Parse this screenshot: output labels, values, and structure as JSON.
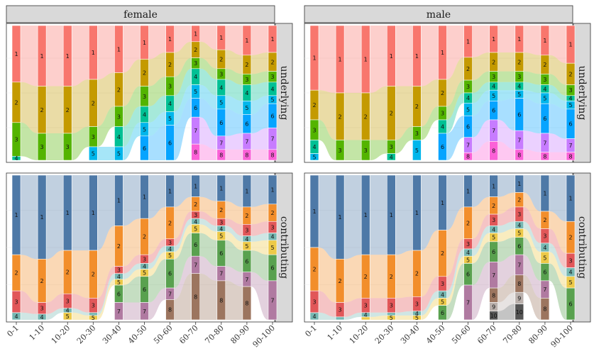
{
  "chart_data": {
    "type": "alluvial",
    "facets": {
      "columns": [
        "female",
        "male"
      ],
      "rows": [
        "underlying",
        "contributing"
      ]
    },
    "x_categories": [
      "0-1",
      "1-10",
      "10-20",
      "20-30",
      "30-40",
      "40-50",
      "50-60",
      "60-70",
      "70-80",
      "80-90",
      "90-100"
    ],
    "palettes": {
      "underlying": {
        "1": "#F8766D",
        "2": "#C49A00",
        "3": "#53B400",
        "4": "#00C094",
        "5": "#00B6EB",
        "6": "#06A4FF",
        "7": "#C77CFF",
        "8": "#FB61D7"
      },
      "contributing": {
        "1": "#4E79A7",
        "2": "#F28E2B",
        "3": "#E15759",
        "4": "#76B7B2",
        "5": "#EDC948",
        "6": "#59A14F",
        "7": "#B07AA1",
        "8": "#9C755F",
        "9": "#BAB0AC",
        "10": "#555555"
      }
    },
    "panels": [
      {
        "col": "female",
        "row": "underlying",
        "stacks": [
          [
            [
              "1",
              42
            ],
            [
              "2",
              30
            ],
            [
              "3",
              25
            ],
            [
              "4",
              3
            ]
          ],
          [
            [
              "1",
              45
            ],
            [
              "2",
              35
            ],
            [
              "3",
              20
            ]
          ],
          [
            [
              "1",
              45
            ],
            [
              "2",
              35
            ],
            [
              "3",
              20
            ]
          ],
          [
            [
              "1",
              40
            ],
            [
              "2",
              35
            ],
            [
              "3",
              15
            ],
            [
              "5",
              10
            ]
          ],
          [
            [
              "1",
              35
            ],
            [
              "2",
              25
            ],
            [
              "3",
              15
            ],
            [
              "4",
              15
            ],
            [
              "5",
              10
            ]
          ],
          [
            [
              "1",
              25
            ],
            [
              "2",
              20
            ],
            [
              "3",
              15
            ],
            [
              "4",
              12
            ],
            [
              "5",
              10
            ],
            [
              "6",
              18
            ]
          ],
          [
            [
              "1",
              20
            ],
            [
              "2",
              18
            ],
            [
              "3",
              14
            ],
            [
              "4",
              12
            ],
            [
              "5",
              10
            ],
            [
              "6",
              26
            ]
          ],
          [
            [
              "1",
              12
            ],
            [
              "2",
              12
            ],
            [
              "3",
              8
            ],
            [
              "4",
              12
            ],
            [
              "5",
              10
            ],
            [
              "6",
              14
            ],
            [
              "7",
              20
            ],
            [
              "8",
              12
            ]
          ],
          [
            [
              "1",
              18
            ],
            [
              "2",
              14
            ],
            [
              "3",
              8
            ],
            [
              "4",
              12
            ],
            [
              "5",
              10
            ],
            [
              "6",
              20
            ],
            [
              "7",
              10
            ],
            [
              "8",
              8
            ]
          ],
          [
            [
              "1",
              22
            ],
            [
              "2",
              14
            ],
            [
              "3",
              8
            ],
            [
              "4",
              12
            ],
            [
              "5",
              10
            ],
            [
              "6",
              14
            ],
            [
              "7",
              12
            ],
            [
              "8",
              8
            ]
          ],
          [
            [
              "1",
              20
            ],
            [
              "2",
              14
            ],
            [
              "3",
              8
            ],
            [
              "4",
              10
            ],
            [
              "5",
              6
            ],
            [
              "6",
              18
            ],
            [
              "7",
              16
            ],
            [
              "8",
              8
            ]
          ]
        ]
      },
      {
        "col": "male",
        "row": "underlying",
        "stacks": [
          [
            [
              "1",
              48
            ],
            [
              "2",
              22
            ],
            [
              "3",
              15
            ],
            [
              "4",
              10
            ],
            [
              "5",
              5
            ]
          ],
          [
            [
              "1",
              50
            ],
            [
              "2",
              35
            ],
            [
              "3",
              15
            ]
          ],
          [
            [
              "1",
              50
            ],
            [
              "2",
              35
            ],
            [
              "3",
              15
            ]
          ],
          [
            [
              "1",
              45
            ],
            [
              "2",
              40
            ],
            [
              "3",
              10
            ],
            [
              "4",
              5
            ]
          ],
          [
            [
              "1",
              45
            ],
            [
              "2",
              30
            ],
            [
              "3",
              10
            ],
            [
              "5",
              15
            ]
          ],
          [
            [
              "1",
              40
            ],
            [
              "2",
              20
            ],
            [
              "3",
              10
            ],
            [
              "4",
              10
            ],
            [
              "6",
              20
            ]
          ],
          [
            [
              "1",
              25
            ],
            [
              "2",
              18
            ],
            [
              "3",
              10
            ],
            [
              "4",
              8
            ],
            [
              "5",
              10
            ],
            [
              "6",
              17
            ],
            [
              "7",
              12
            ],
            [
              "8",
              6
            ]
          ],
          [
            [
              "1",
              20
            ],
            [
              "2",
              14
            ],
            [
              "3",
              8
            ],
            [
              "4",
              6
            ],
            [
              "5",
              8
            ],
            [
              "6",
              14
            ],
            [
              "7",
              16
            ],
            [
              "8",
              14
            ]
          ],
          [
            [
              "1",
              20
            ],
            [
              "2",
              14
            ],
            [
              "3",
              8
            ],
            [
              "4",
              6
            ],
            [
              "5",
              6
            ],
            [
              "6",
              24
            ],
            [
              "7",
              14
            ],
            [
              "8",
              8
            ]
          ],
          [
            [
              "1",
              22
            ],
            [
              "2",
              14
            ],
            [
              "3",
              8
            ],
            [
              "4",
              6
            ],
            [
              "5",
              8
            ],
            [
              "6",
              22
            ],
            [
              "7",
              14
            ],
            [
              "8",
              6
            ]
          ],
          [
            [
              "1",
              28
            ],
            [
              "2",
              16
            ],
            [
              "3",
              8
            ],
            [
              "4",
              4
            ],
            [
              "5",
              6
            ],
            [
              "6",
              22
            ],
            [
              "7",
              10
            ],
            [
              "8",
              6
            ]
          ]
        ]
      },
      {
        "col": "female",
        "row": "contributing",
        "stacks": [
          [
            [
              "1",
              55
            ],
            [
              "2",
              25
            ],
            [
              "3",
              15
            ],
            [
              "4",
              5
            ]
          ],
          [
            [
              "1",
              58
            ],
            [
              "2",
              30
            ],
            [
              "3",
              8
            ],
            [
              "4",
              4
            ]
          ],
          [
            [
              "1",
              52
            ],
            [
              "2",
              30
            ],
            [
              "3",
              10
            ],
            [
              "4",
              3
            ],
            [
              "5",
              5
            ]
          ],
          [
            [
              "1",
              52
            ],
            [
              "2",
              33
            ],
            [
              "3",
              10
            ],
            [
              "4",
              2
            ],
            [
              "5",
              3
            ]
          ],
          [
            [
              "1",
              35
            ],
            [
              "2",
              28
            ],
            [
              "3",
              5
            ],
            [
              "4",
              4
            ],
            [
              "5",
              4
            ],
            [
              "6",
              12
            ],
            [
              "7",
              12
            ]
          ],
          [
            [
              "1",
              30
            ],
            [
              "2",
              25
            ],
            [
              "3",
              6
            ],
            [
              "4",
              4
            ],
            [
              "5",
              5
            ],
            [
              "6",
              18
            ],
            [
              "7",
              12
            ]
          ],
          [
            [
              "1",
              22
            ],
            [
              "2",
              22
            ],
            [
              "3",
              5
            ],
            [
              "4",
              4
            ],
            [
              "5",
              5
            ],
            [
              "6",
              20
            ],
            [
              "7",
              8
            ],
            [
              "8",
              14
            ]
          ],
          [
            [
              "1",
              15
            ],
            [
              "2",
              10
            ],
            [
              "3",
              5
            ],
            [
              "4",
              4
            ],
            [
              "5",
              6
            ],
            [
              "6",
              16
            ],
            [
              "7",
              12
            ],
            [
              "8",
              32
            ]
          ],
          [
            [
              "1",
              18
            ],
            [
              "2",
              12
            ],
            [
              "3",
              5
            ],
            [
              "4",
              4
            ],
            [
              "5",
              6
            ],
            [
              "6",
              18
            ],
            [
              "7",
              10
            ],
            [
              "8",
              27
            ]
          ],
          [
            [
              "1",
              22
            ],
            [
              "2",
              12
            ],
            [
              "3",
              8
            ],
            [
              "4",
              4
            ],
            [
              "5",
              6
            ],
            [
              "6",
              15
            ],
            [
              "7",
              10
            ],
            [
              "8",
              23
            ]
          ],
          [
            [
              "1",
              20
            ],
            [
              "2",
              12
            ],
            [
              "3",
              8
            ],
            [
              "4",
              5
            ],
            [
              "5",
              10
            ],
            [
              "6",
              18
            ],
            [
              "7",
              27
            ]
          ]
        ]
      },
      {
        "col": "male",
        "row": "contributing",
        "stacks": [
          [
            [
              "1",
              50
            ],
            [
              "2",
              30
            ],
            [
              "3",
              15
            ],
            [
              "4",
              5
            ]
          ],
          [
            [
              "1",
              58
            ],
            [
              "2",
              30
            ],
            [
              "3",
              10
            ],
            [
              "4",
              2
            ]
          ],
          [
            [
              "1",
              55
            ],
            [
              "2",
              30
            ],
            [
              "3",
              10
            ],
            [
              "4",
              3
            ],
            [
              "5",
              2
            ]
          ],
          [
            [
              "1",
              55
            ],
            [
              "2",
              30
            ],
            [
              "3",
              10
            ],
            [
              "4",
              2
            ],
            [
              "5",
              3
            ]
          ],
          [
            [
              "1",
              52
            ],
            [
              "2",
              32
            ],
            [
              "3",
              10
            ],
            [
              "4",
              3
            ],
            [
              "5",
              3
            ]
          ],
          [
            [
              "1",
              38
            ],
            [
              "2",
              32
            ],
            [
              "3",
              10
            ],
            [
              "4",
              5
            ],
            [
              "5",
              5
            ],
            [
              "6",
              10
            ]
          ],
          [
            [
              "1",
              22
            ],
            [
              "2",
              22
            ],
            [
              "3",
              7
            ],
            [
              "4",
              5
            ],
            [
              "5",
              5
            ],
            [
              "6",
              15
            ],
            [
              "7",
              24
            ]
          ],
          [
            [
              "1",
              15
            ],
            [
              "2",
              12
            ],
            [
              "3",
              8
            ],
            [
              "4",
              5
            ],
            [
              "5",
              6
            ],
            [
              "6",
              14
            ],
            [
              "7",
              18
            ],
            [
              "8",
              10
            ],
            [
              "9",
              6
            ],
            [
              "10",
              6
            ]
          ],
          [
            [
              "1",
              12
            ],
            [
              "2",
              10
            ],
            [
              "3",
              10
            ],
            [
              "4",
              5
            ],
            [
              "5",
              6
            ],
            [
              "6",
              12
            ],
            [
              "7",
              14
            ],
            [
              "8",
              12
            ],
            [
              "9",
              8
            ],
            [
              "10",
              11
            ]
          ],
          [
            [
              "1",
              25
            ],
            [
              "2",
              12
            ],
            [
              "3",
              10
            ],
            [
              "4",
              6
            ],
            [
              "5",
              8
            ],
            [
              "6",
              12
            ],
            [
              "7",
              12
            ],
            [
              "8",
              15
            ]
          ],
          [
            [
              "1",
              32
            ],
            [
              "2",
              22
            ],
            [
              "3",
              10
            ],
            [
              "4",
              6
            ],
            [
              "5",
              8
            ],
            [
              "6",
              22
            ]
          ]
        ]
      }
    ]
  }
}
